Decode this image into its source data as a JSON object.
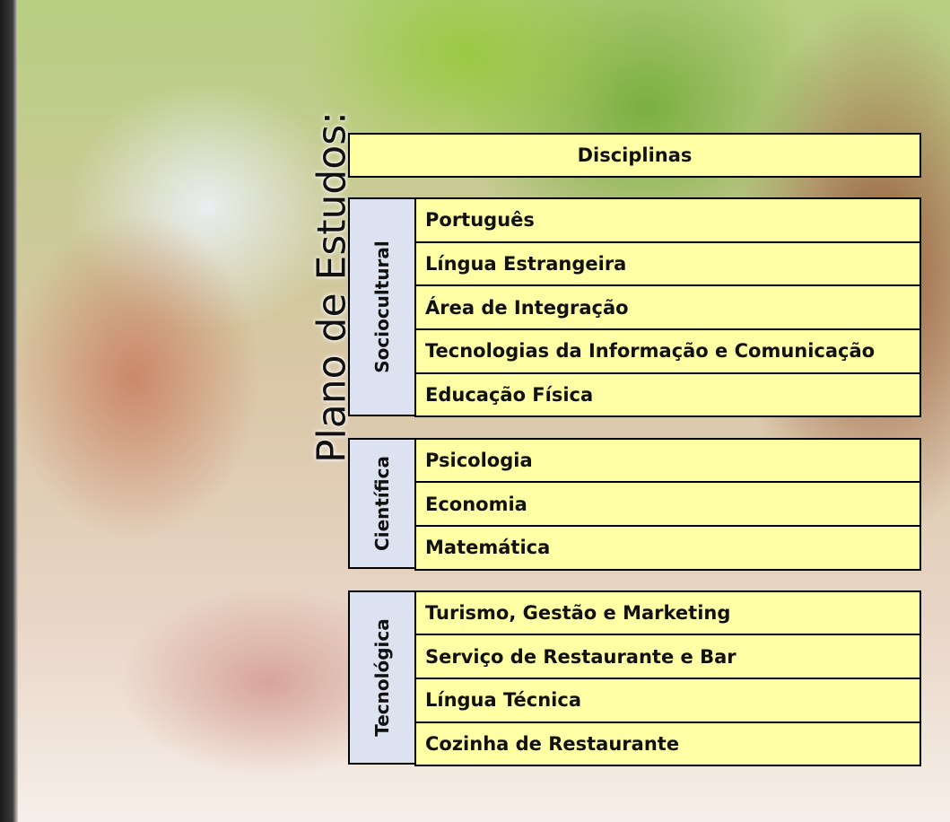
{
  "title": "Plano de Estudos:",
  "table": {
    "header": "Disciplinas",
    "groups": [
      {
        "name": "Sociocultural",
        "subjects": [
          "Português",
          "Língua Estrangeira",
          "Área de Integração",
          "Tecnologias da Informação e Comunicação",
          "Educação Física"
        ]
      },
      {
        "name": "Científica",
        "subjects": [
          "Psicologia",
          "Economia",
          "Matemática"
        ]
      },
      {
        "name": "Tecnológica",
        "subjects": [
          "Turismo, Gestão e Marketing",
          "Serviço de Restaurante e Bar",
          "Língua Técnica",
          "Cozinha de Restaurante"
        ]
      }
    ]
  }
}
